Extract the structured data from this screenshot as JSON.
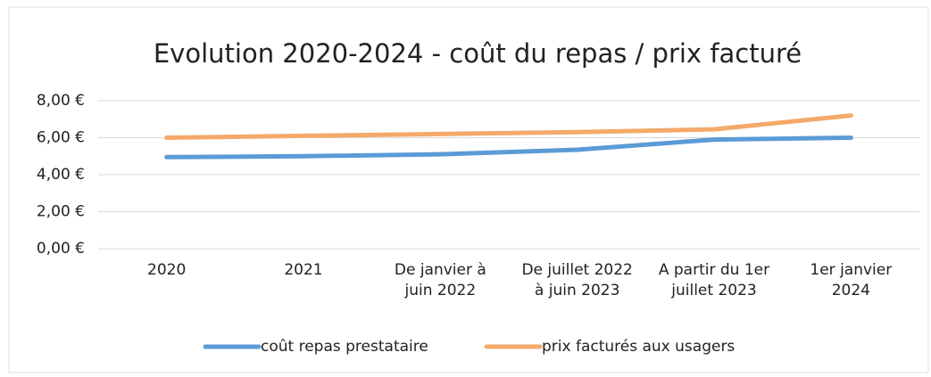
{
  "chart_data": {
    "type": "line",
    "title": "Evolution 2020-2024 - coût du repas / prix facturé",
    "categories": [
      "2020",
      "2021",
      "De janvier à juin 2022",
      "De juillet 2022 à juin 2023",
      "A partir du 1er juillet 2023",
      "1er janvier 2024"
    ],
    "series": [
      {
        "name": "coût repas prestataire",
        "color": "#5b9bd5",
        "values": [
          4.95,
          5.0,
          5.1,
          5.35,
          5.9,
          6.0
        ]
      },
      {
        "name": "prix facturés aux usagers",
        "color": "#f4a96a",
        "values": [
          6.0,
          6.1,
          6.2,
          6.3,
          6.45,
          7.2
        ]
      }
    ],
    "ylim": [
      0,
      8
    ],
    "yticks": [
      {
        "value": 0,
        "label": "0,00 €"
      },
      {
        "value": 2,
        "label": "2,00 €"
      },
      {
        "value": 4,
        "label": "4,00 €"
      },
      {
        "value": 6,
        "label": "6,00 €"
      },
      {
        "value": 8,
        "label": "8,00 €"
      }
    ],
    "grid": true,
    "legend": "bottom"
  }
}
